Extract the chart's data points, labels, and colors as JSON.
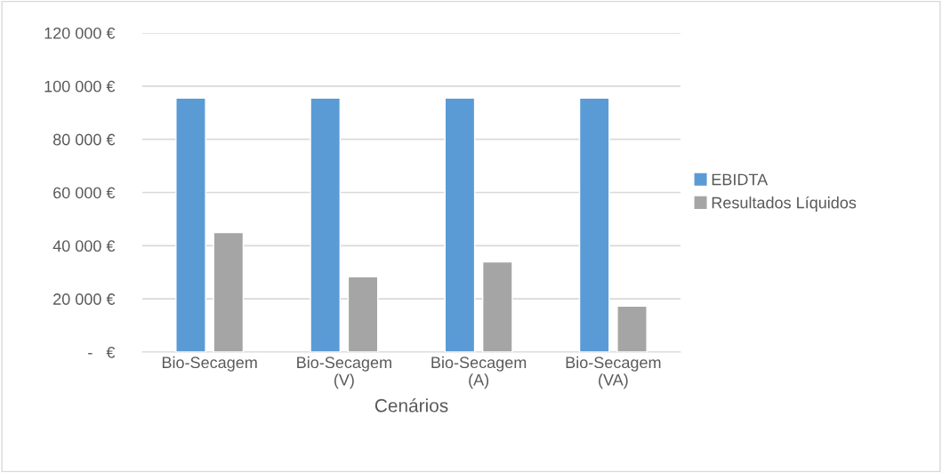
{
  "chart_data": {
    "type": "bar",
    "xlabel": "Cenários",
    "categories": [
      "Bio-Secagem",
      "Bio-Secagem\n(V)",
      "Bio-Secagem\n(A)",
      "Bio-Secagem\n(VA)"
    ],
    "series": [
      {
        "name": "EBIDTA",
        "color": "#5b9bd5",
        "values": [
          95500,
          95500,
          95500,
          95500
        ]
      },
      {
        "name": "Resultados Líquidos",
        "color": "#a5a5a5",
        "values": [
          44900,
          28300,
          33900,
          17300
        ]
      }
    ],
    "ylim": [
      0,
      120000
    ],
    "yticks": [
      {
        "value": 0,
        "label": "-   €"
      },
      {
        "value": 20000,
        "label": "20 000 €"
      },
      {
        "value": 40000,
        "label": "40 000 €"
      },
      {
        "value": 60000,
        "label": "60 000 €"
      },
      {
        "value": 80000,
        "label": "80 000 €"
      },
      {
        "value": 100000,
        "label": "100 000 €"
      },
      {
        "value": 120000,
        "label": "120 000 €"
      }
    ],
    "grid": "y",
    "legend": "right"
  }
}
